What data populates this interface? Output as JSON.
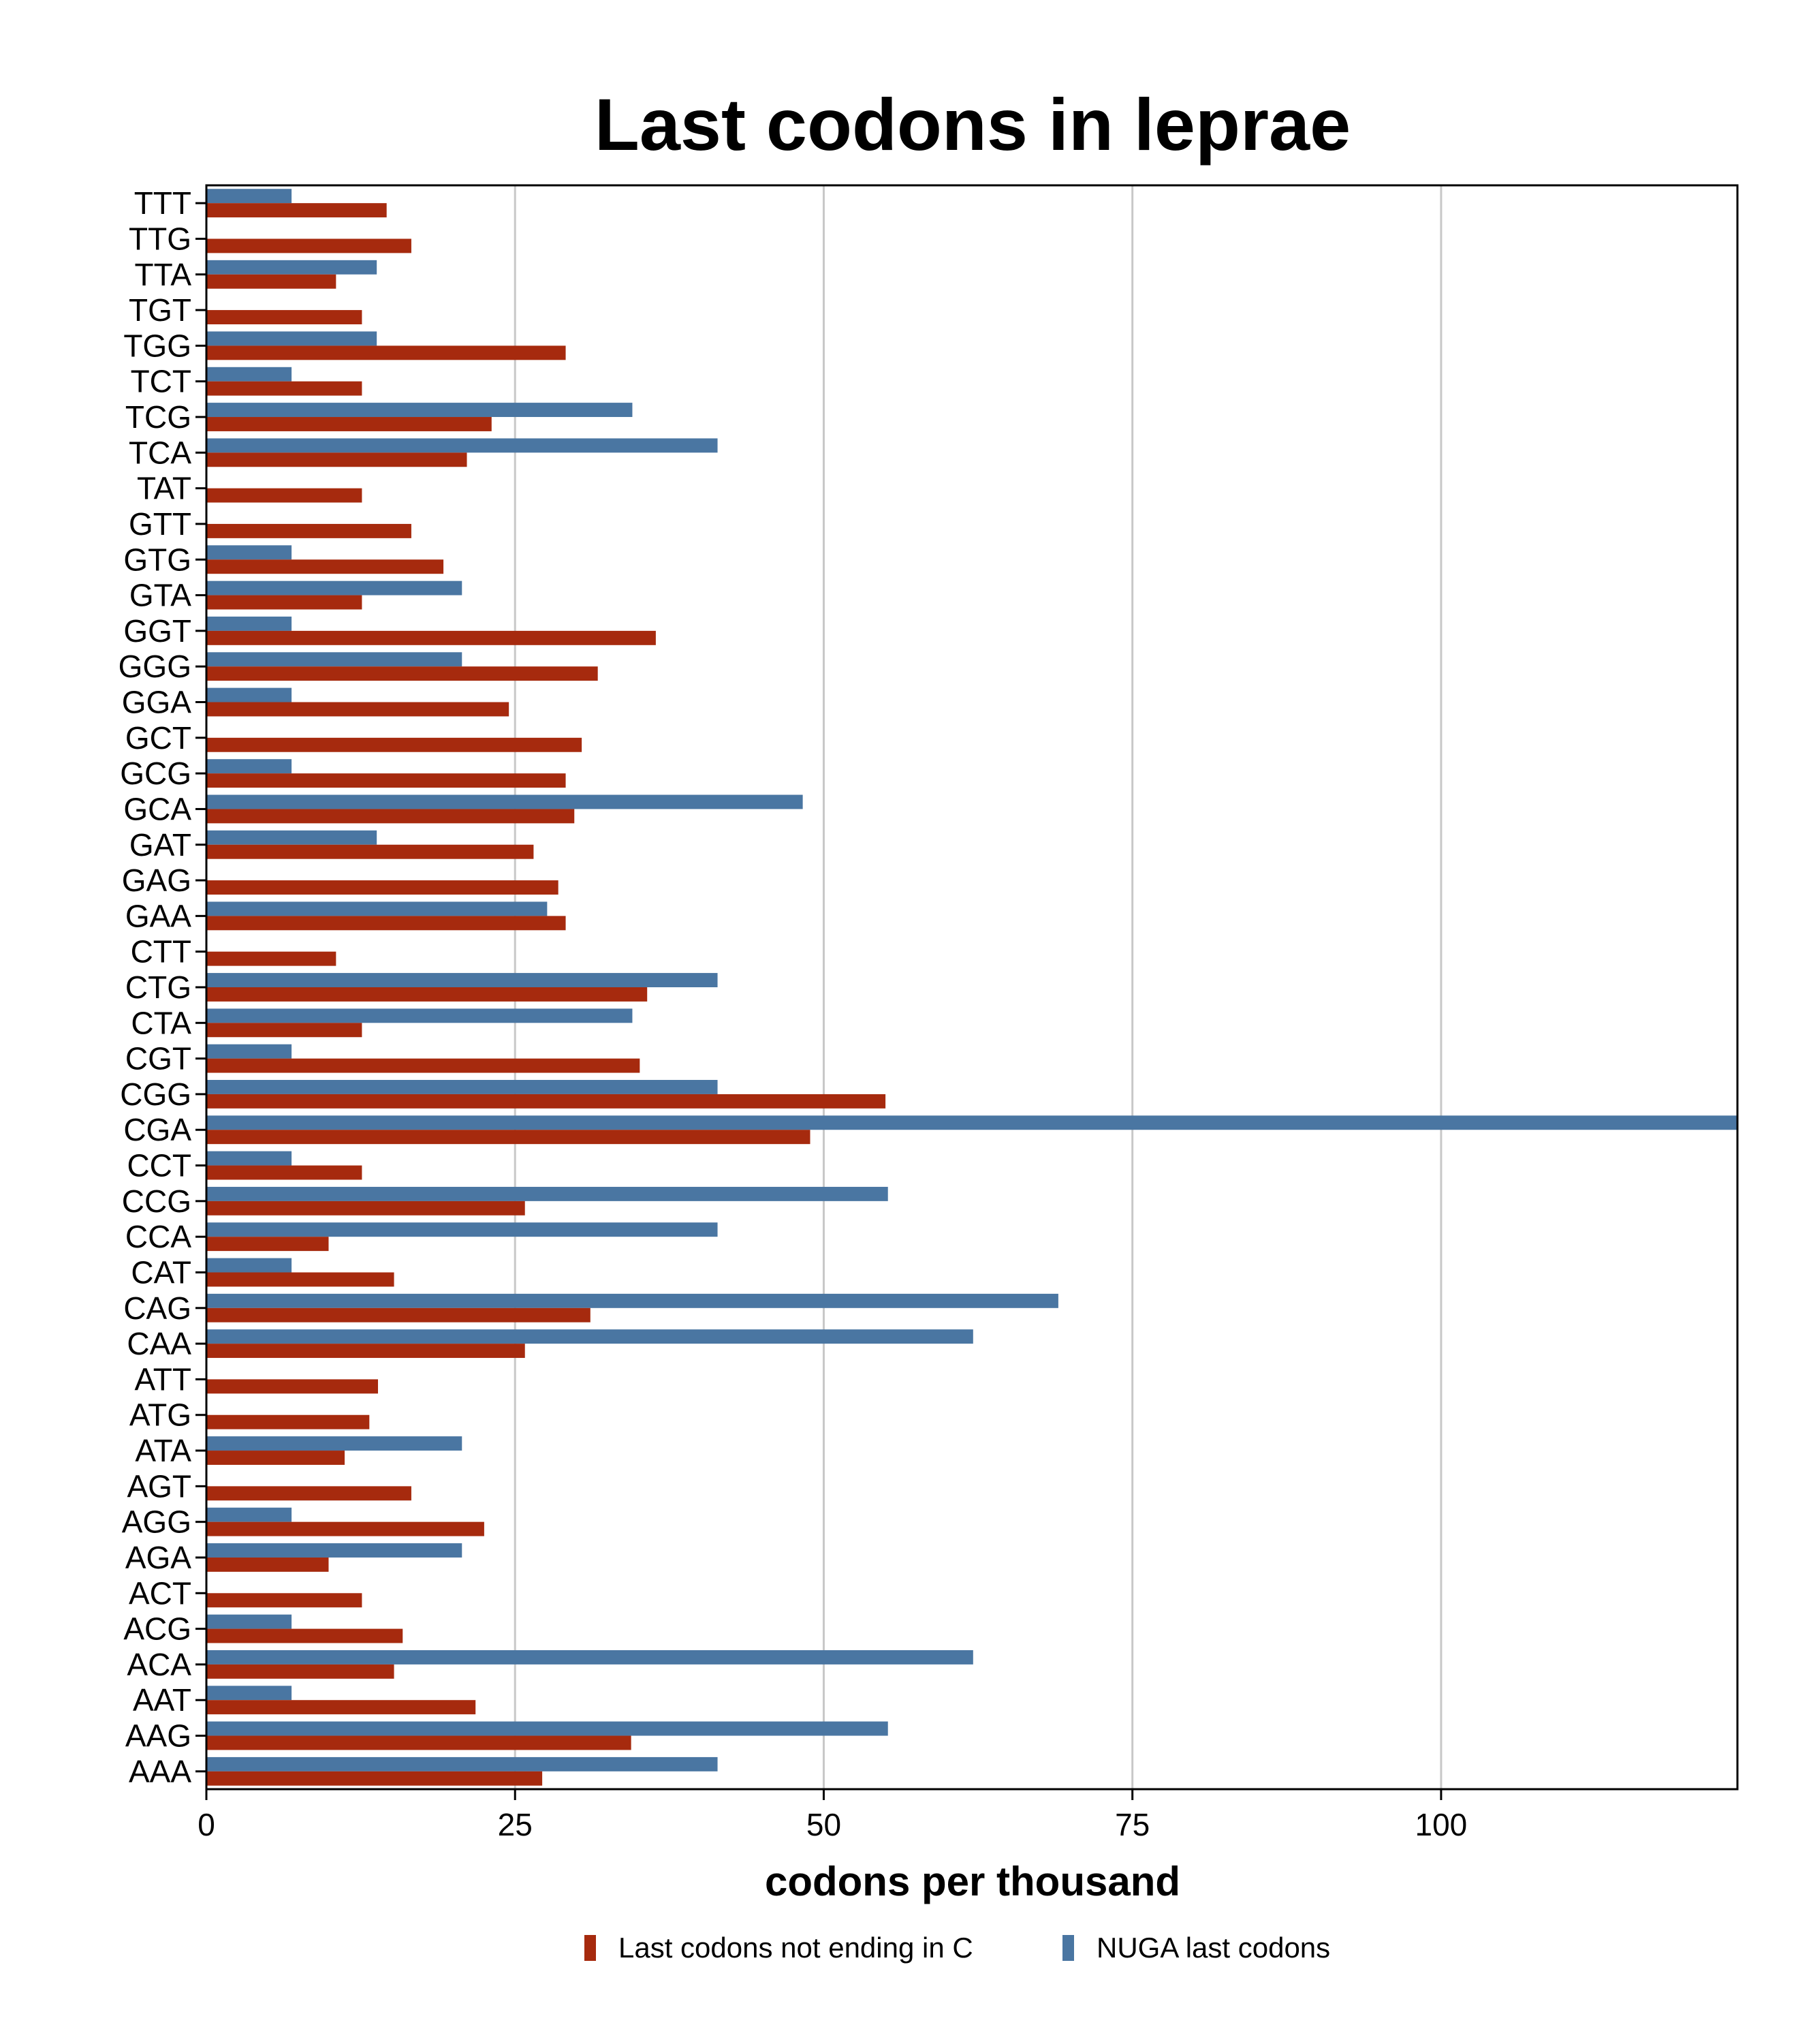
{
  "chart_data": {
    "type": "bar",
    "orientation": "horizontal",
    "title": "Last codons in leprae",
    "xlabel": "codons per thousand",
    "ylabel": "",
    "xlim": [
      0,
      124
    ],
    "xticks": [
      0,
      25,
      50,
      75,
      100
    ],
    "grid": "vertical",
    "legend_position": "bottom",
    "categories": [
      "TTT",
      "TTG",
      "TTA",
      "TGT",
      "TGG",
      "TCT",
      "TCG",
      "TCA",
      "TAT",
      "GTT",
      "GTG",
      "GTA",
      "GGT",
      "GGG",
      "GGA",
      "GCT",
      "GCG",
      "GCA",
      "GAT",
      "GAG",
      "GAA",
      "CTT",
      "CTG",
      "CTA",
      "CGT",
      "CGG",
      "CGA",
      "CCT",
      "CCG",
      "CCA",
      "CAT",
      "CAG",
      "CAA",
      "ATT",
      "ATG",
      "ATA",
      "AGT",
      "AGG",
      "AGA",
      "ACT",
      "ACG",
      "ACA",
      "AAT",
      "AAG",
      "AAA"
    ],
    "series": [
      {
        "name": "Last codons not ending in C",
        "color": "#a62a0e",
        "values": [
          14.6,
          16.6,
          10.5,
          12.6,
          29.1,
          12.6,
          23.1,
          21.1,
          12.6,
          16.6,
          19.2,
          12.6,
          36.4,
          31.7,
          24.5,
          30.4,
          29.1,
          29.8,
          26.5,
          28.5,
          29.1,
          10.5,
          35.7,
          12.6,
          35.1,
          55.0,
          48.9,
          12.6,
          25.8,
          9.9,
          15.2,
          31.1,
          25.8,
          13.9,
          13.2,
          11.2,
          16.6,
          22.5,
          9.9,
          12.6,
          15.9,
          15.2,
          21.8,
          34.4,
          27.2
        ]
      },
      {
        "name": "NUGA last codons",
        "color": "#4a76a2",
        "values": [
          6.9,
          0,
          13.8,
          0,
          13.8,
          6.9,
          34.5,
          41.4,
          0,
          0,
          6.9,
          20.7,
          6.9,
          20.7,
          6.9,
          0,
          6.9,
          48.3,
          13.8,
          0,
          27.6,
          0,
          41.4,
          34.5,
          6.9,
          41.4,
          124.1,
          6.9,
          55.2,
          41.4,
          6.9,
          69.0,
          62.1,
          0,
          0,
          20.7,
          0,
          6.9,
          20.7,
          0,
          6.9,
          62.1,
          6.9,
          55.2,
          41.4
        ]
      }
    ]
  }
}
